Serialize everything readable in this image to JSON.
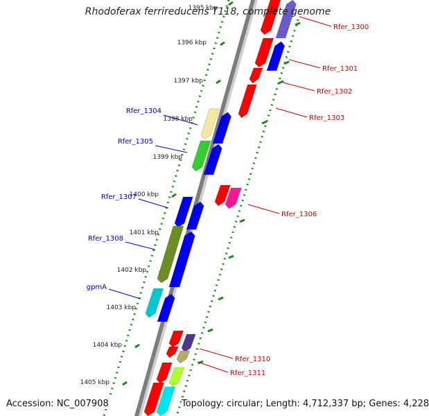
{
  "title": "Rhodoferax ferrireducens T118, complete genome",
  "accession": "Accession: NC_007908",
  "topology": "Topology: circular; Length: 4,712,337 bp; Genes: 4,228",
  "ruler": [
    {
      "label": "1395 kbp"
    },
    {
      "label": "1396 kbp"
    },
    {
      "label": "1397 kbp"
    },
    {
      "label": "1398 kbp"
    },
    {
      "label": "1399 kbp"
    },
    {
      "label": "1400 kbp"
    },
    {
      "label": "1401 kbp"
    },
    {
      "label": "1402 kbp"
    },
    {
      "label": "1403 kbp"
    },
    {
      "label": "1404 kbp"
    },
    {
      "label": "1405 kbp"
    }
  ],
  "colors": {
    "forward_label": "#0000cc",
    "reverse_label": "#cc0000",
    "backbone": "#8c8c8c",
    "ruler_dots": "#1a8a1a"
  },
  "genes": [
    {
      "label": "Rfer_1300",
      "strand": "reverse"
    },
    {
      "label": "Rfer_1301",
      "strand": "reverse"
    },
    {
      "label": "Rfer_1302",
      "strand": "reverse"
    },
    {
      "label": "Rfer_1303",
      "strand": "reverse"
    },
    {
      "label": "Rfer_1304",
      "strand": "forward"
    },
    {
      "label": "Rfer_1305",
      "strand": "forward"
    },
    {
      "label": "Rfer_1306",
      "strand": "reverse"
    },
    {
      "label": "Rfer_1307",
      "strand": "forward"
    },
    {
      "label": "Rfer_1308",
      "strand": "forward"
    },
    {
      "label": "gpmA",
      "strand": "forward"
    },
    {
      "label": "Rfer_1310",
      "strand": "reverse"
    },
    {
      "label": "Rfer_1311",
      "strand": "reverse"
    }
  ]
}
